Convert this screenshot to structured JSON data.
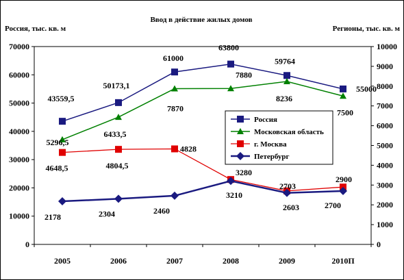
{
  "chart_data": {
    "type": "line",
    "title": "Ввод в действие жилых домов",
    "ylabel_left": "Россия, тыс. кв. м",
    "ylabel_right": "Регионы, тыс. кв. м",
    "categories": [
      "2005",
      "2006",
      "2007",
      "2008",
      "2009",
      "2010П"
    ],
    "ylim_left": [
      0,
      70000
    ],
    "yticks_left": [
      "0",
      "10000",
      "20000",
      "30000",
      "40000",
      "50000",
      "60000",
      "70000"
    ],
    "ylim_right": [
      0,
      10000
    ],
    "yticks_right": [
      "0",
      "1000",
      "2000",
      "3000",
      "4000",
      "5000",
      "6000",
      "7000",
      "8000",
      "9000",
      "10000"
    ],
    "grid": false,
    "legend_position": "center-right",
    "series": [
      {
        "name": "Россия",
        "axis": "left",
        "color": "#1a1a80",
        "marker": "square",
        "values": [
          43559.5,
          50173.1,
          61000,
          63800,
          59764,
          55000
        ],
        "labels": [
          "43559,5",
          "50173,1",
          "61000",
          "63800",
          "59764",
          "55000"
        ]
      },
      {
        "name": "Московская область",
        "axis": "right",
        "color": "#008000",
        "marker": "triangle",
        "values": [
          5296.5,
          6433.5,
          7870,
          7880,
          8236,
          7500
        ],
        "labels": [
          "5296,5",
          "6433,5",
          "7870",
          "7880",
          "8236",
          "7500"
        ]
      },
      {
        "name": "г. Москва",
        "axis": "right",
        "color": "#e00000",
        "marker": "square",
        "values": [
          4648.5,
          4804.5,
          4828,
          3280,
          2703,
          2900
        ],
        "labels": [
          "4648,5",
          "4804,5",
          "4828",
          "3280",
          "2703",
          "2900"
        ]
      },
      {
        "name": "Петербург",
        "axis": "right",
        "color": "#1a1a80",
        "marker": "diamond",
        "values": [
          2178,
          2304,
          2460,
          3210,
          2603,
          2700
        ],
        "labels": [
          "2178",
          "2304",
          "2460",
          "3210",
          "2603",
          "2700"
        ]
      }
    ]
  }
}
